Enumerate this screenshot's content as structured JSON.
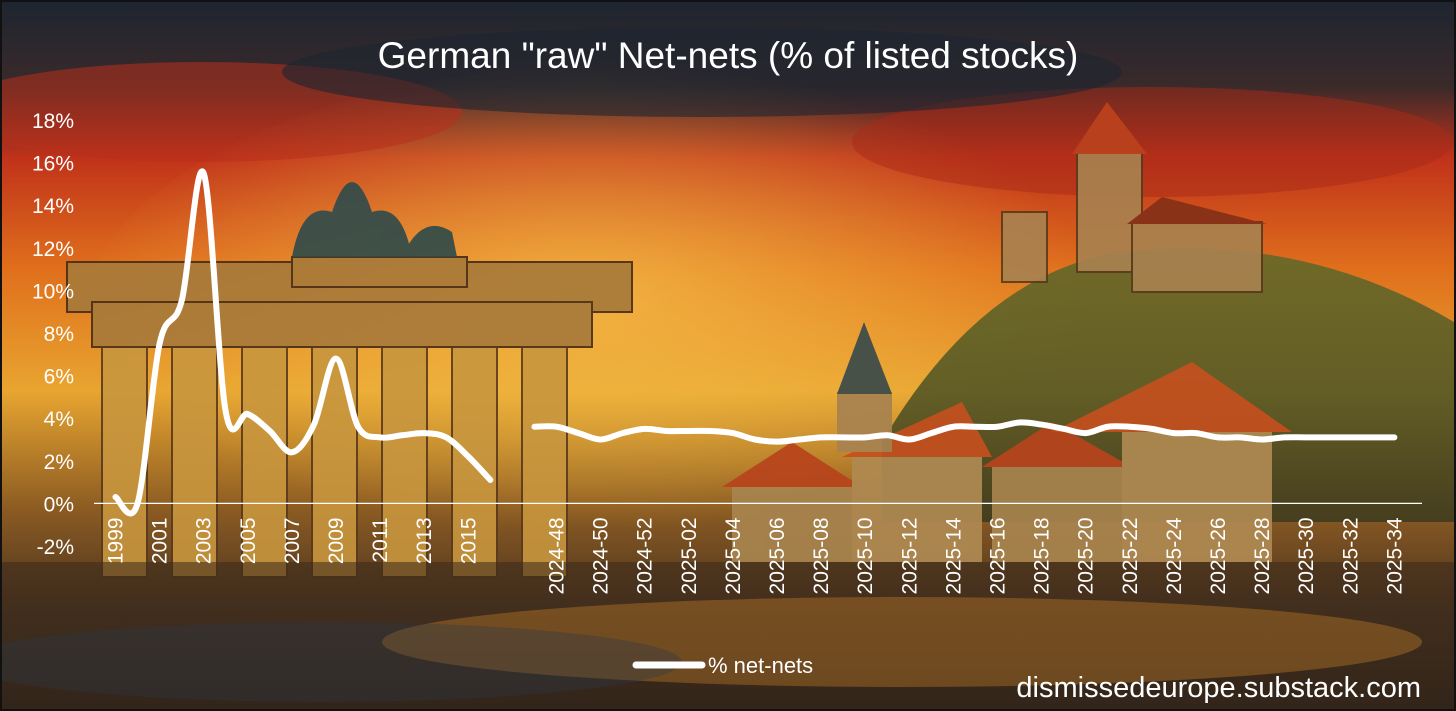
{
  "colors": {
    "line": "#ffffff",
    "sky_dark": "#1e2530",
    "sky_red": "#c0321a",
    "sky_orange": "#e08a22",
    "ground": "#3a2a1c"
  },
  "watermark": "dismissedeurope.substack.com",
  "chart_data": {
    "type": "line",
    "title": "German \"raw\" Net-nets (% of listed stocks)",
    "xlabel": "",
    "ylabel": "",
    "ylim": [
      -2,
      18
    ],
    "yticks": [
      "-2%",
      "0%",
      "2%",
      "4%",
      "6%",
      "8%",
      "10%",
      "12%",
      "14%",
      "16%",
      "18%"
    ],
    "x_tick_labels": [
      "1999",
      "2001",
      "2003",
      "2005",
      "2007",
      "2009",
      "2011",
      "2013",
      "2015",
      "2024-48",
      "2024-50",
      "2024-52",
      "2025-02",
      "2025-04",
      "2025-06",
      "2025-08",
      "2025-10",
      "2025-12",
      "2025-14",
      "2025-16",
      "2025-18",
      "2025-20",
      "2025-22",
      "2025-24",
      "2025-26",
      "2025-28",
      "2025-30",
      "2025-32",
      "2025-34"
    ],
    "grid": false,
    "legend_position": "bottom",
    "series": [
      {
        "name": "% net-nets",
        "segments": [
          {
            "x": [
              "1999",
              "2000",
              "2001",
              "2002",
              "2003",
              "2004",
              "2005",
              "2006",
              "2007",
              "2008",
              "2009",
              "2010",
              "2011",
              "2012",
              "2013",
              "2014",
              "2015",
              "2016"
            ],
            "values": [
              0.3,
              0.0,
              7.5,
              9.5,
              15.5,
              4.3,
              4.2,
              3.4,
              2.4,
              3.7,
              6.8,
              3.6,
              3.1,
              3.2,
              3.3,
              3.1,
              2.2,
              1.1
            ]
          },
          {
            "x": [
              "2024-47",
              "2024-48",
              "2024-49",
              "2024-50",
              "2024-51",
              "2024-52",
              "2025-01",
              "2025-02",
              "2025-03",
              "2025-04",
              "2025-05",
              "2025-06",
              "2025-07",
              "2025-08",
              "2025-09",
              "2025-10",
              "2025-11",
              "2025-12",
              "2025-13",
              "2025-14",
              "2025-15",
              "2025-16",
              "2025-17",
              "2025-18",
              "2025-19",
              "2025-20",
              "2025-21",
              "2025-22",
              "2025-23",
              "2025-24",
              "2025-25",
              "2025-26",
              "2025-27",
              "2025-28",
              "2025-29",
              "2025-30",
              "2025-31",
              "2025-32",
              "2025-33",
              "2025-34"
            ],
            "values": [
              3.6,
              3.6,
              3.3,
              3.0,
              3.3,
              3.5,
              3.4,
              3.4,
              3.4,
              3.3,
              3.0,
              2.9,
              3.0,
              3.1,
              3.1,
              3.1,
              3.2,
              3.0,
              3.3,
              3.6,
              3.6,
              3.6,
              3.8,
              3.7,
              3.5,
              3.3,
              3.6,
              3.6,
              3.5,
              3.3,
              3.3,
              3.1,
              3.1,
              3.0,
              3.1,
              3.1,
              3.1,
              3.1,
              3.1,
              3.1
            ]
          }
        ]
      }
    ]
  }
}
